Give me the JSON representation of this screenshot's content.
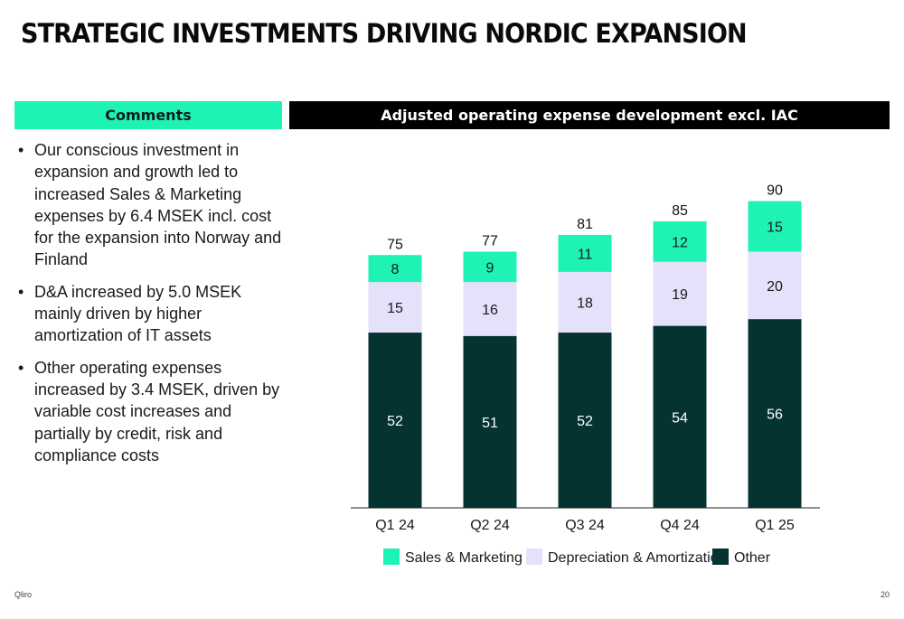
{
  "title": "STRATEGIC INVESTMENTS DRIVING NORDIC EXPANSION",
  "comments": {
    "heading": "Comments",
    "bullets": [
      "Our conscious investment in expansion and growth led to increased Sales & Marketing expenses by 6.4 MSEK incl. cost for the expansion into Norway and Finland",
      "D&A increased by 5.0 MSEK mainly driven by higher amortization of IT assets",
      "Other operating expenses increased by 3.4 MSEK, driven by variable cost increases and partially by credit, risk and compliance costs"
    ]
  },
  "chart_heading": "Adjusted operating expense development excl. IAC",
  "chart_data": {
    "type": "bar",
    "stacked": true,
    "categories": [
      "Q1 24",
      "Q2 24",
      "Q3 24",
      "Q4 24",
      "Q1 25"
    ],
    "series": [
      {
        "name": "Other",
        "values": [
          52,
          51,
          52,
          54,
          56
        ],
        "color": "#053331",
        "label_color": "#ffffff"
      },
      {
        "name": "Depreciation & Amortization",
        "values": [
          15,
          16,
          18,
          19,
          20
        ],
        "color": "#e6e1fb",
        "label_color": "#1a1a1a"
      },
      {
        "name": "Sales & Marketing",
        "values": [
          8,
          9,
          11,
          12,
          15
        ],
        "color": "#1ef2b5",
        "label_color": "#1a1a1a"
      }
    ],
    "totals": [
      75,
      77,
      81,
      85,
      90
    ],
    "legend_order": [
      "Sales & Marketing",
      "Depreciation & Amortization",
      "Other"
    ],
    "legend_position": "bottom",
    "ylim": [
      0,
      100
    ],
    "grid": false
  },
  "footer": {
    "brand": "Qliro",
    "page": "20"
  }
}
